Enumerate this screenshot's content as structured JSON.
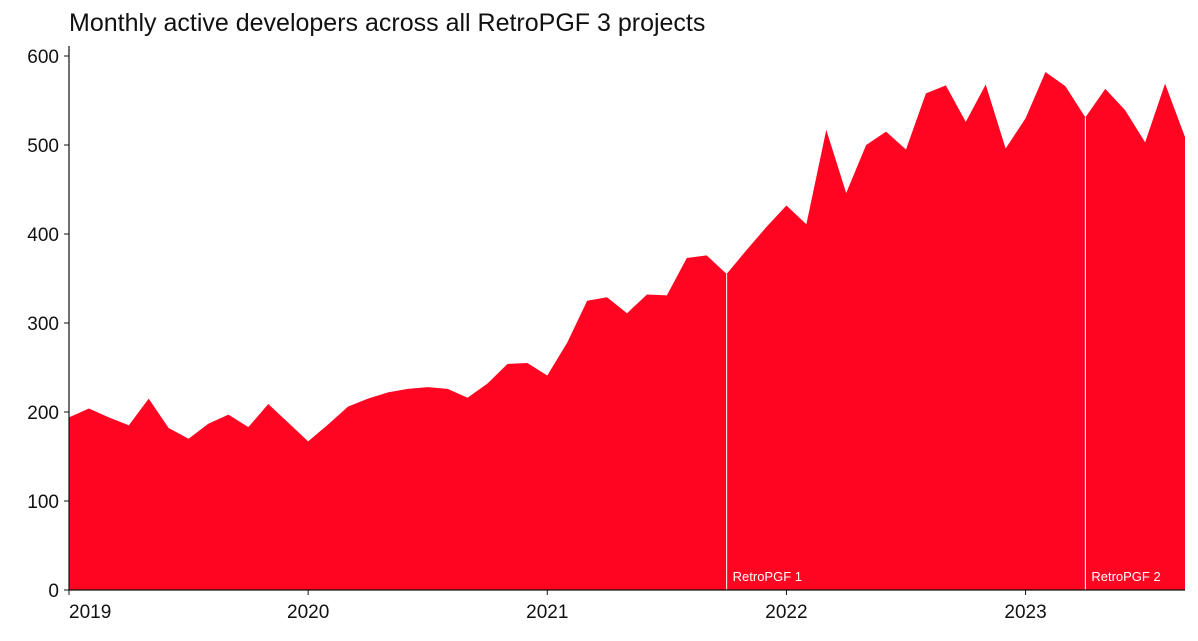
{
  "chart_data": {
    "type": "area",
    "title": "Monthly active developers across all RetroPGF 3 projects",
    "xlabel": "",
    "ylabel": "",
    "x_start": "2019-01",
    "ylim": [
      0,
      600
    ],
    "yticks": [
      0,
      100,
      200,
      300,
      400,
      500,
      600
    ],
    "xticks": [
      {
        "label": "2019",
        "index": 0
      },
      {
        "label": "2020",
        "index": 12
      },
      {
        "label": "2021",
        "index": 24
      },
      {
        "label": "2022",
        "index": 36
      },
      {
        "label": "2023",
        "index": 48
      }
    ],
    "series": [
      {
        "name": "Monthly active developers",
        "color": "#ff0522",
        "values": [
          194,
          204,
          194,
          185,
          215,
          182,
          170,
          187,
          197,
          183,
          209,
          188,
          167,
          186,
          206,
          215,
          222,
          226,
          228,
          226,
          216,
          232,
          254,
          255,
          241,
          278,
          325,
          329,
          311,
          332,
          331,
          373,
          376,
          355,
          382,
          408,
          432,
          411,
          517,
          446,
          500,
          515,
          495,
          558,
          567,
          526,
          568,
          496,
          530,
          582,
          566,
          531,
          563,
          539,
          503,
          569,
          509
        ]
      }
    ],
    "annotations": [
      {
        "label": "RetroPGF 1",
        "index": 33,
        "color": "#ffffff"
      },
      {
        "label": "RetroPGF 2",
        "index": 51,
        "color": "#ffffff"
      }
    ]
  }
}
